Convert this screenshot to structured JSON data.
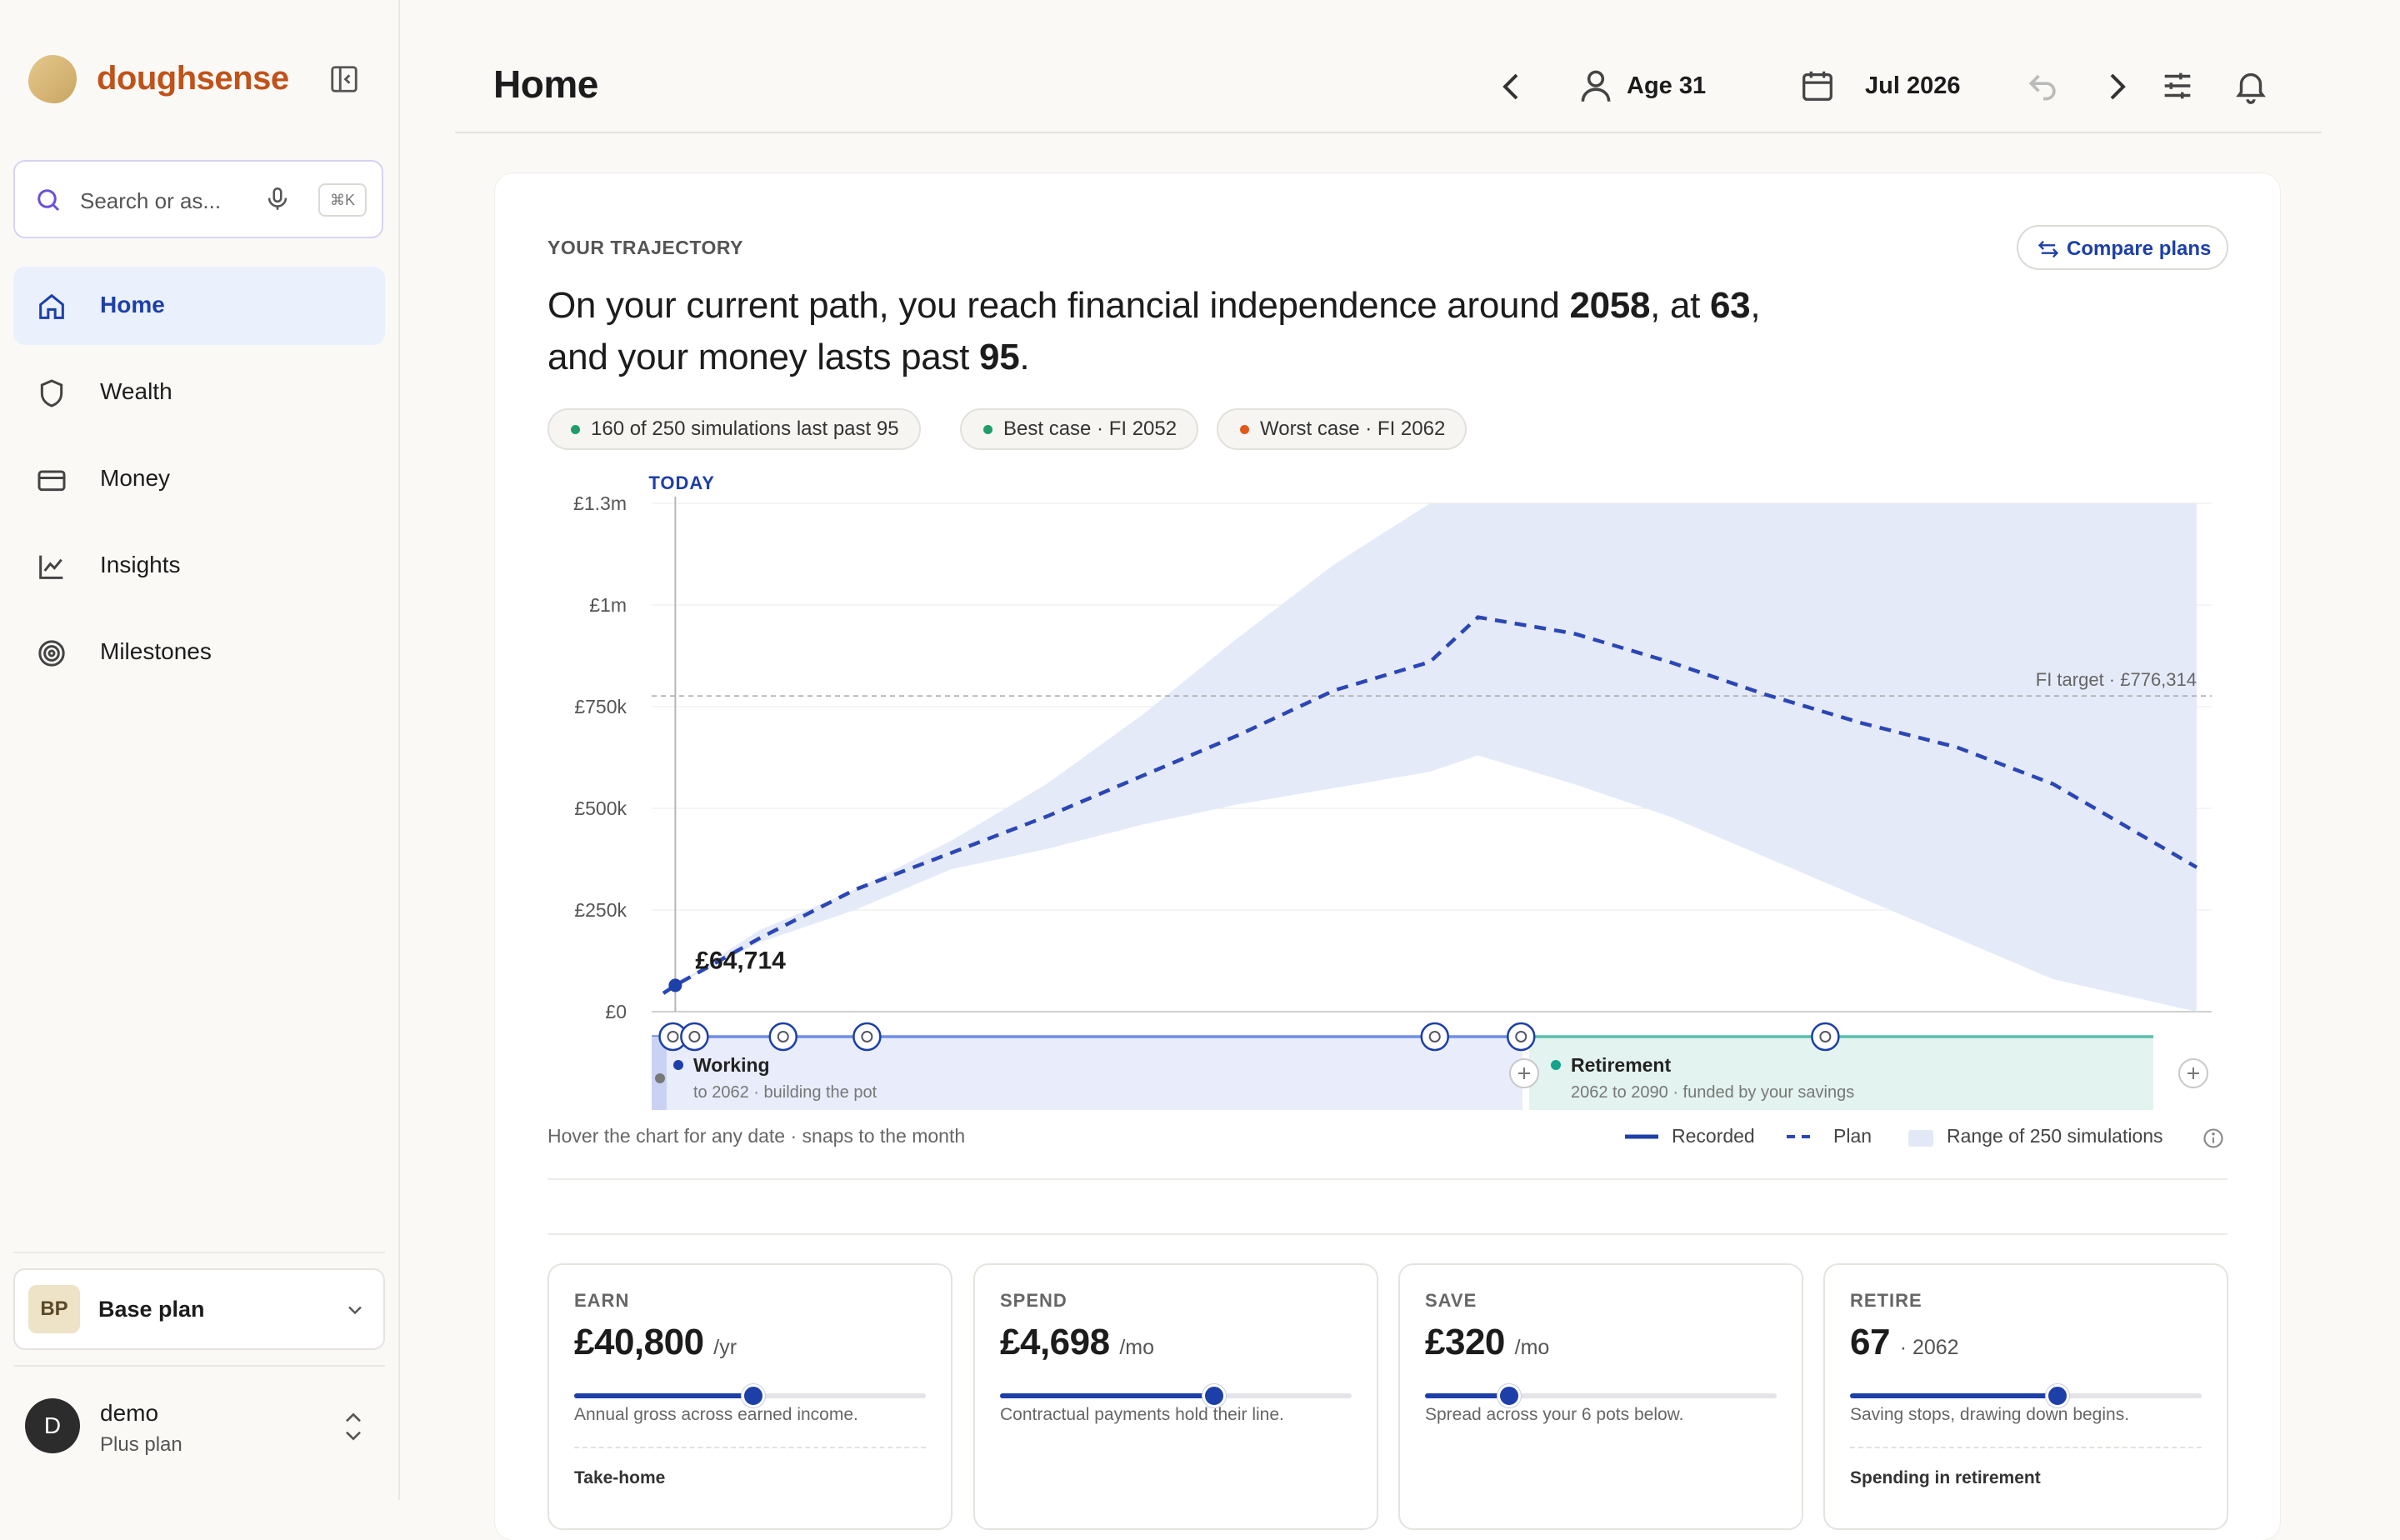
{
  "app": {
    "name": "doughsense"
  },
  "search": {
    "placeholder": "Search or as...",
    "shortcut": "⌘K"
  },
  "nav": [
    {
      "label": "Home",
      "icon": "home-icon",
      "active": true
    },
    {
      "label": "Wealth",
      "icon": "shield-icon"
    },
    {
      "label": "Money",
      "icon": "card-icon"
    },
    {
      "label": "Insights",
      "icon": "chart-line-icon"
    },
    {
      "label": "Milestones",
      "icon": "target-icon"
    }
  ],
  "plan": {
    "avatar": "BP",
    "name": "Base plan"
  },
  "user": {
    "initial": "D",
    "name": "demo",
    "plan": "Plus plan"
  },
  "header": {
    "title": "Home",
    "age": "Age 31",
    "date": "Jul 2026"
  },
  "trajectory": {
    "eyebrow": "YOUR TRAJECTORY",
    "compare": "Compare plans",
    "headline": {
      "p1": "On your current path, you reach financial independence around ",
      "fi_year": "2058",
      "p2": ", at ",
      "fi_age": "63",
      "p3": ", and your money lasts past ",
      "lasts_age": "95",
      "p4": "."
    },
    "chips": [
      {
        "text": "160 of 250 simulations last past 95",
        "color": "#1f9d6a"
      },
      {
        "text": "Best case · FI 2052",
        "color": "#1f9d6a"
      },
      {
        "text": "Worst case · FI 2062",
        "color": "#e2591c"
      }
    ],
    "note": "Hover the chart for any date · snaps to the month",
    "legend": {
      "recorded": "Recorded",
      "plan": "Plan",
      "range": "Range of 250 simulations"
    }
  },
  "chart_data": {
    "type": "area",
    "today_label": "TODAY",
    "y_ticks": [
      "£0",
      "£250k",
      "£500k",
      "£750k",
      "£1m",
      "£1.3m"
    ],
    "ylim": [
      0,
      1250000
    ],
    "xlim": [
      2026,
      2090
    ],
    "today_x": 2026.5,
    "current_value_label": "£64,714",
    "fi_target_label": "FI target · £776,314",
    "fi_target": 776314,
    "plan": {
      "x": [
        2026.0,
        2026.5,
        2030,
        2034,
        2038,
        2042,
        2046,
        2050,
        2054,
        2058,
        2060,
        2064,
        2068,
        2072,
        2076,
        2080,
        2084,
        2090
      ],
      "y": [
        45000,
        64714,
        180000,
        300000,
        390000,
        480000,
        580000,
        680000,
        790000,
        860000,
        970000,
        930000,
        860000,
        780000,
        710000,
        650000,
        560000,
        355000
      ]
    },
    "range_upper": {
      "x": [
        2026.5,
        2030,
        2034,
        2038,
        2042,
        2046,
        2050,
        2054,
        2058,
        2060,
        2064,
        2068,
        2072,
        2076,
        2080,
        2084,
        2090
      ],
      "y": [
        64714,
        200000,
        300000,
        420000,
        560000,
        730000,
        920000,
        1100000,
        1250000,
        1250000,
        1250000,
        1250000,
        1250000,
        1250000,
        1250000,
        1250000,
        1250000
      ]
    },
    "range_lower": {
      "x": [
        2026.5,
        2030,
        2034,
        2038,
        2042,
        2046,
        2050,
        2054,
        2058,
        2060,
        2064,
        2068,
        2072,
        2076,
        2080,
        2084,
        2090
      ],
      "y": [
        64714,
        170000,
        250000,
        350000,
        400000,
        460000,
        510000,
        550000,
        590000,
        630000,
        560000,
        480000,
        380000,
        280000,
        180000,
        80000,
        0
      ]
    },
    "phases": [
      {
        "name": "Working",
        "detail": "to 2062 · building the pot",
        "start": 2026,
        "end": 2062,
        "color": "#e8ecfb",
        "line": "#6f8ee6",
        "dot": "#1d3fa8"
      },
      {
        "name": "Retirement",
        "detail": "2062 to 2090 · funded by your savings",
        "start": 2062,
        "end": 2090,
        "color": "#e3f3ef",
        "line": "#5bbfae",
        "dot": "#14a38b"
      }
    ],
    "milestones": [
      {
        "x": 2026.4,
        "icon": "cake-icon"
      },
      {
        "x": 2027.3,
        "icon": "trend-icon"
      },
      {
        "x": 2031,
        "icon": "doc-icon"
      },
      {
        "x": 2034.5,
        "icon": "calendar-icon"
      },
      {
        "x": 2058.2,
        "icon": "target-icon"
      },
      {
        "x": 2061.8,
        "icon": "palm-icon"
      },
      {
        "x": 2074.5,
        "icon": "piggy-icon"
      }
    ]
  },
  "stats": [
    {
      "label": "EARN",
      "value": "£40,800",
      "unit": "/yr",
      "slider": 0.51,
      "sub": "Annual gross across earned income.",
      "foot": "Take-home"
    },
    {
      "label": "SPEND",
      "value": "£4,698",
      "unit": "/mo",
      "slider": 0.61,
      "sub": "Contractual payments hold their line.",
      "foot": ""
    },
    {
      "label": "SAVE",
      "value": "£320",
      "unit": "/mo",
      "slider": 0.24,
      "sub": "Spread across your 6 pots below.",
      "foot": ""
    },
    {
      "label": "RETIRE",
      "value": "67",
      "unit": "· 2062",
      "slider": 0.59,
      "sub": "Saving stops, drawing down begins.",
      "foot": "Spending in retirement"
    }
  ]
}
